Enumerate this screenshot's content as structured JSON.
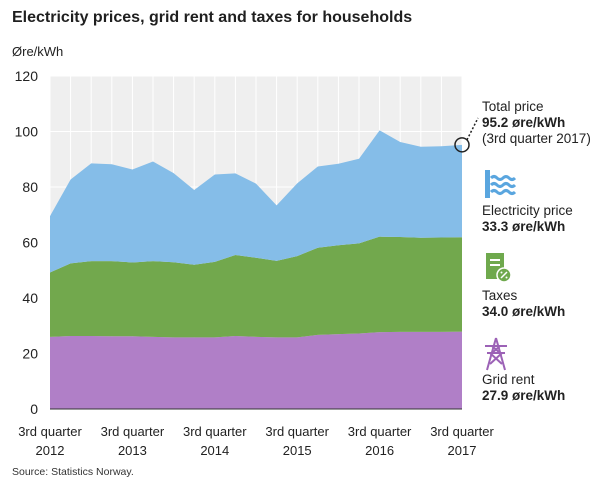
{
  "header": {
    "title": "Electricity prices, grid rent and taxes for households",
    "unit": "Øre/kWh"
  },
  "legend": {
    "total_label": "Total price",
    "total_value": "95.2 øre/kWh",
    "total_note": "(3rd quarter 2017)",
    "electricity_label": "Electricity price",
    "electricity_value": "33.3 øre/kWh",
    "taxes_label": "Taxes",
    "taxes_value": "34.0 øre/kWh",
    "grid_label": "Grid rent",
    "grid_value": "27.9 øre/kWh"
  },
  "icons": {
    "electricity": "water-waves-icon",
    "taxes": "tax-document-icon",
    "grid": "power-pylon-icon"
  },
  "colors": {
    "electricity": "#85bde8",
    "taxes": "#72a84d",
    "grid": "#b07fc7",
    "plot_bg": "#efefef",
    "icon_electricity": "#5aa6df",
    "icon_taxes": "#6fa94d",
    "icon_grid": "#9c62b6"
  },
  "source": "Source: Statistics Norway.",
  "chart_data": {
    "type": "area",
    "stacked": true,
    "x": [
      "2012Q3",
      "2012Q4",
      "2013Q1",
      "2013Q2",
      "2013Q3",
      "2013Q4",
      "2014Q1",
      "2014Q2",
      "2014Q3",
      "2014Q4",
      "2015Q1",
      "2015Q2",
      "2015Q3",
      "2015Q4",
      "2016Q1",
      "2016Q2",
      "2016Q3",
      "2016Q4",
      "2017Q1",
      "2017Q2",
      "2017Q3"
    ],
    "x_tick_labels": [
      {
        "line1": "3rd quarter",
        "line2": "2012"
      },
      {
        "line1": "3rd quarter",
        "line2": "2013"
      },
      {
        "line1": "3rd quarter",
        "line2": "2014"
      },
      {
        "line1": "3rd quarter",
        "line2": "2015"
      },
      {
        "line1": "3rd quarter",
        "line2": "2016"
      },
      {
        "line1": "3rd quarter",
        "line2": "2017"
      }
    ],
    "ylabel": "Øre/kWh",
    "ylim": [
      0,
      120
    ],
    "yticks": [
      0,
      20,
      40,
      60,
      80,
      100,
      120
    ],
    "grid": true,
    "legend_position": "right",
    "series": [
      {
        "name": "Grid rent",
        "color": "#b07fc7",
        "values": [
          26.0,
          26.3,
          26.3,
          26.2,
          26.2,
          26.0,
          25.8,
          25.8,
          25.8,
          26.3,
          26.0,
          25.8,
          25.8,
          26.7,
          27.0,
          27.2,
          27.7,
          27.8,
          27.8,
          27.8,
          27.9
        ]
      },
      {
        "name": "Taxes",
        "color": "#72a84d",
        "values": [
          23.2,
          26.2,
          27.0,
          27.1,
          26.6,
          27.3,
          27.1,
          26.2,
          27.2,
          29.2,
          28.5,
          27.6,
          29.3,
          31.4,
          32.0,
          32.5,
          34.4,
          34.2,
          33.9,
          34.0,
          34.0
        ]
      },
      {
        "name": "Electricity price",
        "color": "#85bde8",
        "values": [
          20.3,
          30.2,
          35.2,
          34.9,
          33.5,
          35.9,
          32.1,
          26.9,
          31.5,
          29.4,
          26.7,
          20.0,
          26.2,
          29.3,
          29.4,
          30.5,
          38.3,
          34.2,
          32.8,
          32.9,
          33.3
        ]
      }
    ],
    "annotation": {
      "text": "Total price 95.2 øre/kWh (3rd quarter 2017)",
      "x": "2017Q3",
      "y": 95.2
    }
  }
}
